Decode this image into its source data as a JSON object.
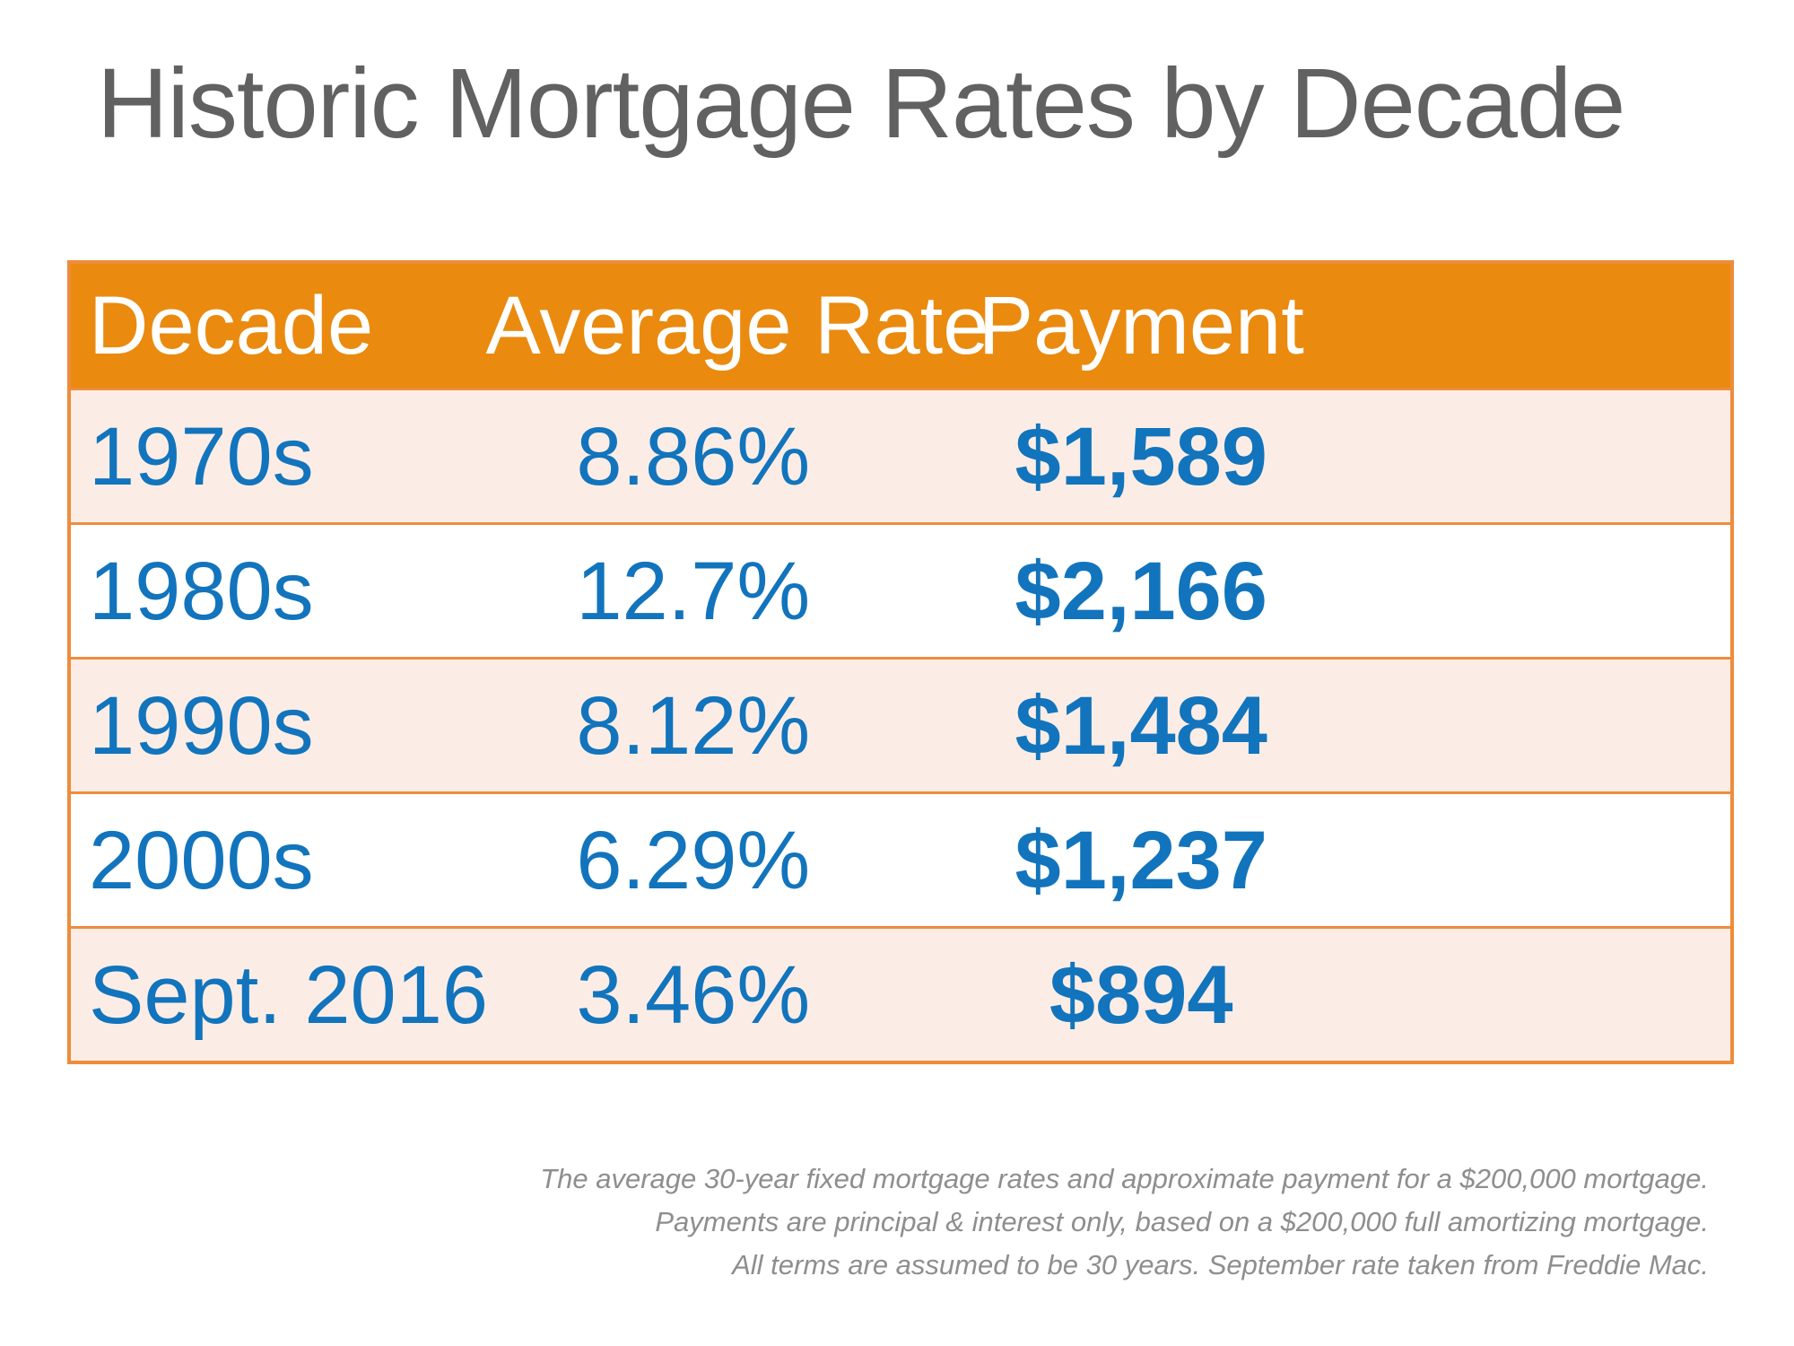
{
  "title": "Historic Mortgage Rates by Decade",
  "table": {
    "headers": [
      "Decade",
      "Average Rate",
      "Payment"
    ],
    "rows": [
      {
        "decade": "1970s",
        "rate": "8.86%",
        "payment": "$1,589"
      },
      {
        "decade": "1980s",
        "rate": "12.7%",
        "payment": "$2,166"
      },
      {
        "decade": "1990s",
        "rate": "8.12%",
        "payment": "$1,484"
      },
      {
        "decade": "2000s",
        "rate": "6.29%",
        "payment": "$1,237"
      },
      {
        "decade": "Sept. 2016",
        "rate": "3.46%",
        "payment": "$894"
      }
    ]
  },
  "footnote": {
    "lines": [
      "The average 30-year fixed mortgage rates and approximate payment for a $200,000 mortgage.",
      "Payments are principal & interest only, based on a $200,000 full amortizing mortgage.",
      "All terms are assumed to be 30 years. September rate taken from Freddie Mac."
    ]
  },
  "colors": {
    "header_bg": "#EA8A0F",
    "row_alt_bg": "#FBEDE6",
    "border_orange": "#EE8C3C",
    "value_blue": "#1274BC",
    "title_gray": "#616161",
    "footnote_gray": "#8E8E8E"
  },
  "chart_data": {
    "type": "table",
    "title": "Historic Mortgage Rates by Decade",
    "columns": [
      "Decade",
      "Average Rate",
      "Payment"
    ],
    "rows": [
      [
        "1970s",
        "8.86%",
        "$1,589"
      ],
      [
        "1980s",
        "12.7%",
        "$2,166"
      ],
      [
        "1990s",
        "8.12%",
        "$1,484"
      ],
      [
        "2000s",
        "6.29%",
        "$1,237"
      ],
      [
        "Sept. 2016",
        "3.46%",
        "$894"
      ]
    ],
    "notes": [
      "The average 30-year fixed mortgage rates and approximate payment for a $200,000 mortgage.",
      "Payments are principal & interest only, based on a $200,000 full amortizing mortgage.",
      "All terms are assumed to be 30 years. September rate taken from Freddie Mac."
    ]
  }
}
